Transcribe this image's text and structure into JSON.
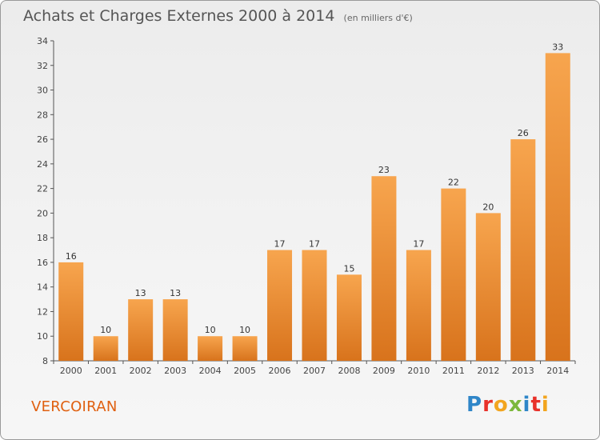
{
  "header": {
    "title": "Achats et Charges Externes 2000 à 2014",
    "subtitle": "(en milliers d'€)"
  },
  "commune": "VERCOIRAN",
  "brand": {
    "name": "Proxiti",
    "letters": [
      "P",
      "r",
      "o",
      "x",
      "i",
      "t",
      "i"
    ],
    "colors": [
      "#2f86c8",
      "#e8312a",
      "#f2a51f",
      "#7cb83c",
      "#2f86c8",
      "#e8312a",
      "#f2a51f"
    ]
  },
  "chart_data": {
    "type": "bar",
    "title": "Achats et Charges Externes 2000 à 2014",
    "subtitle": "(en milliers d'€)",
    "xlabel": "",
    "ylabel": "",
    "categories": [
      "2000",
      "2001",
      "2002",
      "2003",
      "2004",
      "2005",
      "2006",
      "2007",
      "2008",
      "2009",
      "2010",
      "2011",
      "2012",
      "2013",
      "2014"
    ],
    "values": [
      16,
      10,
      13,
      13,
      10,
      10,
      17,
      17,
      15,
      23,
      17,
      22,
      20,
      26,
      33
    ],
    "ylim": [
      8,
      34
    ],
    "yticks": [
      8,
      10,
      12,
      14,
      16,
      18,
      20,
      22,
      24,
      26,
      28,
      30,
      32,
      34
    ],
    "grid": false,
    "bar_color_top": "#f7a54e",
    "bar_color_bottom": "#d8731c"
  }
}
